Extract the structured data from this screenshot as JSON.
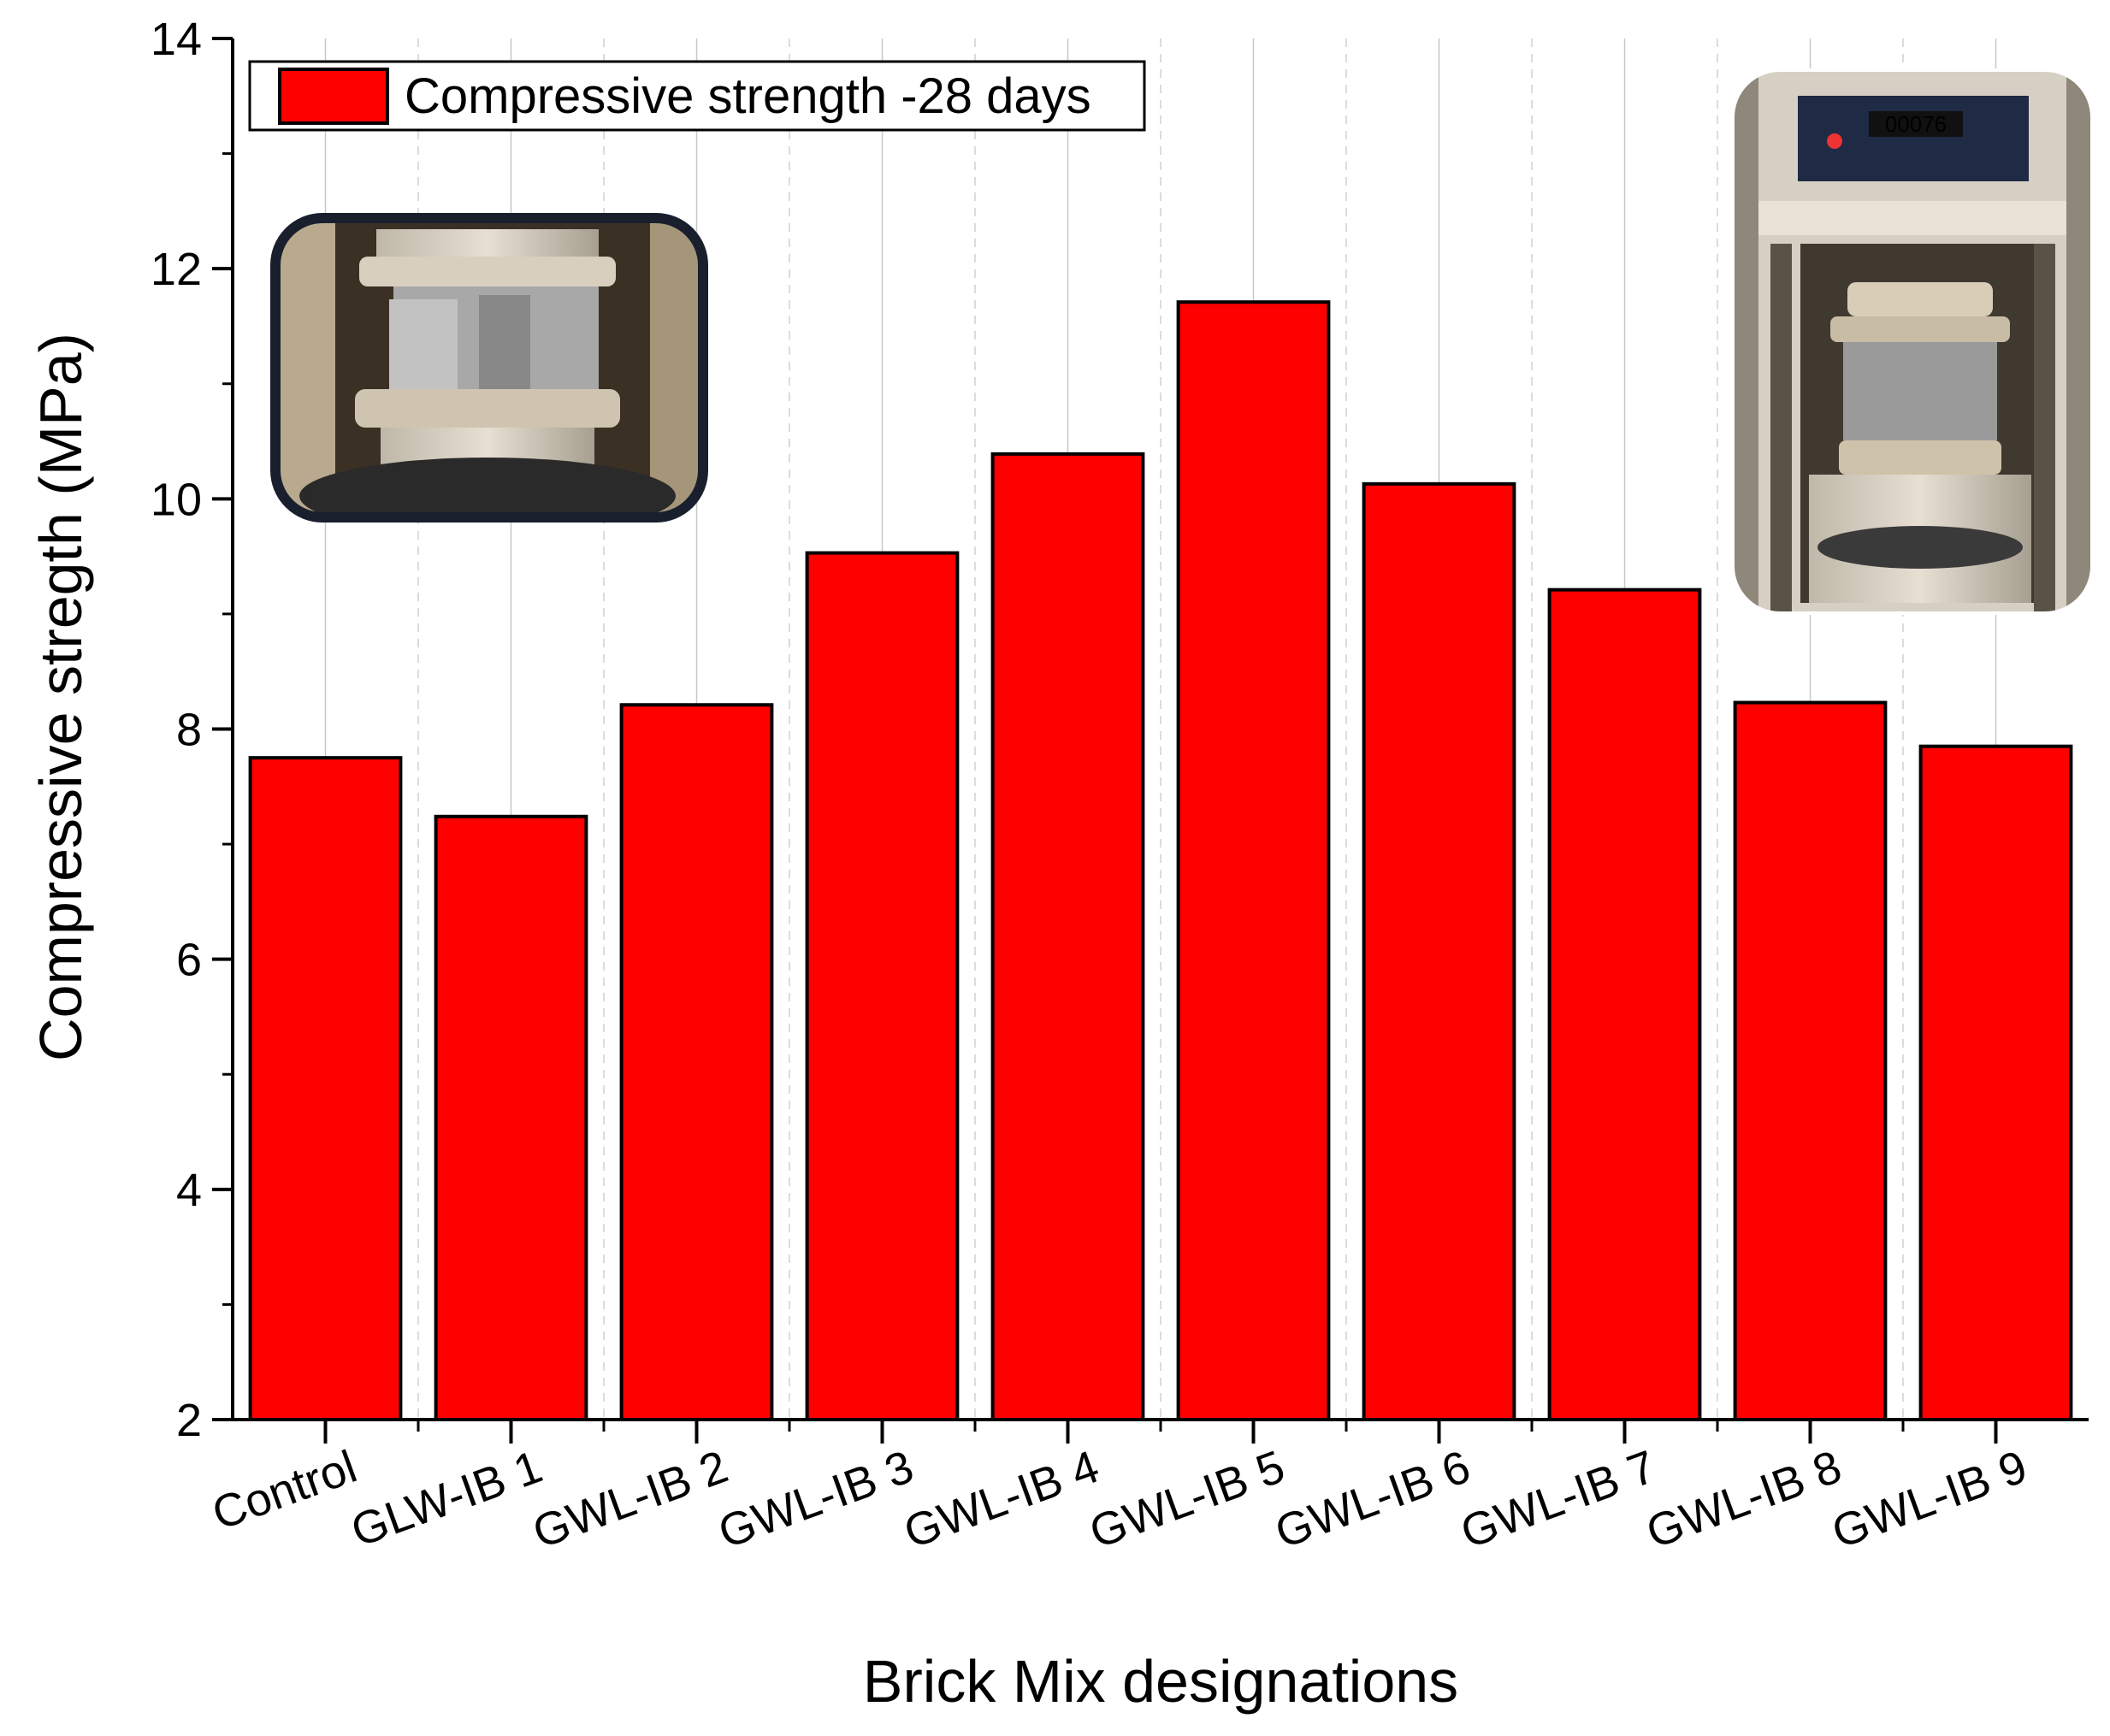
{
  "chart_data": {
    "type": "bar",
    "categories": [
      "Control",
      "GLW-IB 1",
      "GWL-IB 2",
      "GWL-IB 3",
      "GWL-IB 4",
      "GWL-IB 5",
      "GWL-IB 6",
      "GWL-IB 7",
      "GWL-IB 8",
      "GWL-IB 9"
    ],
    "series": [
      {
        "name": "Compressive strength -28 days",
        "values": [
          7.75,
          7.24,
          8.21,
          9.53,
          10.39,
          11.71,
          10.13,
          9.21,
          8.23,
          7.85
        ],
        "color": "#ff0000"
      }
    ],
    "xlabel": "Brick Mix designations",
    "ylabel": "Compressive stregth (MPa)",
    "ylim": [
      2,
      14
    ],
    "yticks": [
      2,
      4,
      6,
      8,
      10,
      12,
      14
    ],
    "grid": "vertical dashed",
    "legend": "top-left",
    "bar_edge_color": "#000000",
    "insets": [
      {
        "name": "compression-test-photo-left",
        "position": "top-left"
      },
      {
        "name": "compression-test-photo-right",
        "position": "top-right",
        "display_reading": "00076"
      }
    ]
  }
}
